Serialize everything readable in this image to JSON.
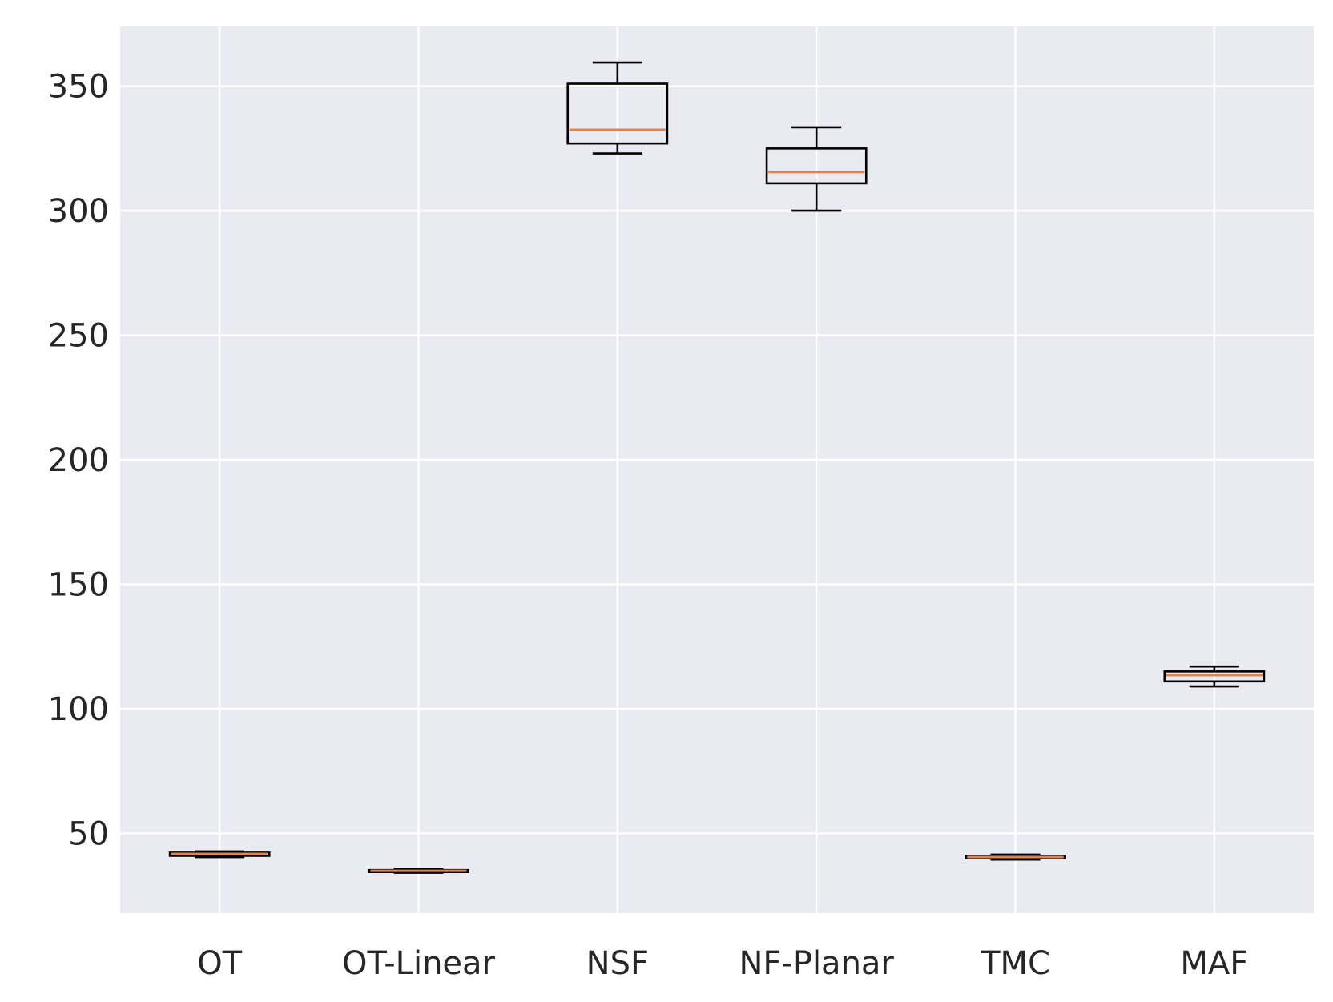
{
  "colors": {
    "background": "#ffffff",
    "plot_background": "#eaeaf2",
    "grid": "#ffffff",
    "box": "#000000",
    "median": "#dd8452",
    "text": "#262626"
  },
  "chart_data": {
    "type": "box",
    "title": "",
    "xlabel": "",
    "ylabel": "",
    "ylim": [
      18,
      374
    ],
    "yticks": [
      50,
      100,
      150,
      200,
      250,
      300,
      350
    ],
    "ytick_labels": [
      "50",
      "100",
      "150",
      "200",
      "250",
      "300",
      "350"
    ],
    "grid": true,
    "categories": [
      "OT",
      "OT-Linear",
      "NSF",
      "NF-Planar",
      "TMC",
      "MAF"
    ],
    "boxes": [
      {
        "label": "OT",
        "whisker_low": 40.5,
        "q1": 41.0,
        "median": 41.8,
        "q3": 42.3,
        "whisker_high": 42.8
      },
      {
        "label": "OT-Linear",
        "whisker_low": 34.2,
        "q1": 34.5,
        "median": 35.0,
        "q3": 35.3,
        "whisker_high": 35.6
      },
      {
        "label": "NSF",
        "whisker_low": 323,
        "q1": 327,
        "median": 332.5,
        "q3": 351,
        "whisker_high": 359.5
      },
      {
        "label": "NF-Planar",
        "whisker_low": 300,
        "q1": 311,
        "median": 315.5,
        "q3": 325,
        "whisker_high": 333.5
      },
      {
        "label": "TMC",
        "whisker_low": 39.5,
        "q1": 40.0,
        "median": 40.5,
        "q3": 41.0,
        "whisker_high": 41.5
      },
      {
        "label": "MAF",
        "whisker_low": 109,
        "q1": 111,
        "median": 113.5,
        "q3": 115,
        "whisker_high": 117
      }
    ]
  }
}
